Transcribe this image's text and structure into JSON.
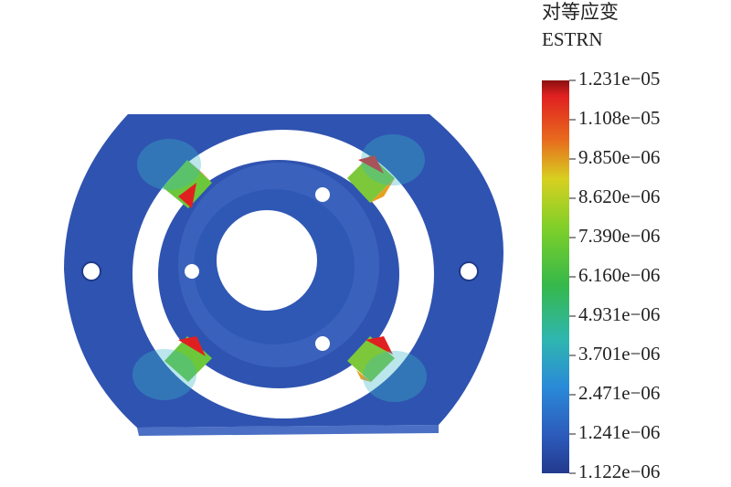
{
  "legend": {
    "title": "对等应变",
    "subtitle": "ESTRN",
    "ticks": [
      "1.231e−05",
      "1.108e−05",
      "9.850e−06",
      "8.620e−06",
      "7.390e−06",
      "6.160e−06",
      "4.931e−06",
      "3.701e−06",
      "2.471e−06",
      "1.241e−06",
      "1.122e−06"
    ]
  }
}
